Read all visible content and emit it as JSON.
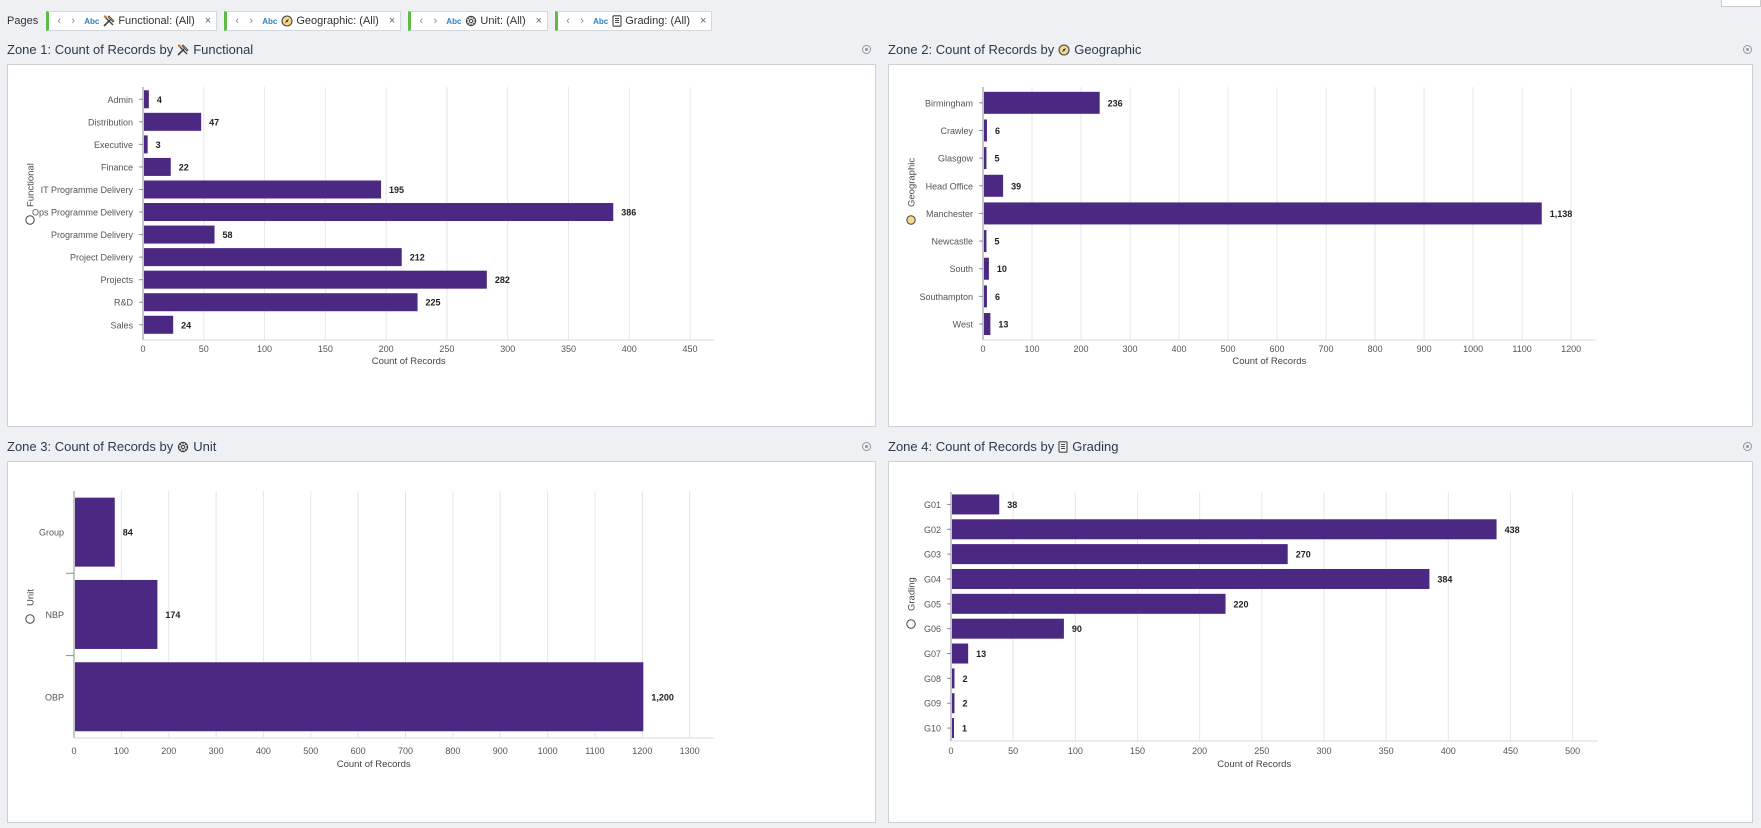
{
  "pages_bar": {
    "label": "Pages",
    "pills": [
      {
        "abc": "Abc",
        "icon": "hammer-icon",
        "label": "Functional: (All)",
        "close": "×"
      },
      {
        "abc": "Abc",
        "icon": "compass-icon",
        "label": "Geographic: (All)",
        "close": "×"
      },
      {
        "abc": "Abc",
        "icon": "gear-icon",
        "label": "Unit: (All)",
        "close": "×"
      },
      {
        "abc": "Abc",
        "icon": "document-icon",
        "label": "Grading: (All)",
        "close": "×"
      }
    ]
  },
  "colors": {
    "bar": "#4b2882",
    "grid": "#e4e6ea",
    "axis": "#8a8f96",
    "tick_text": "#555555"
  },
  "zones": [
    {
      "title_prefix": "Zone 1: Count of Records by",
      "title_suffix": "Functional",
      "icon": "hammer-icon"
    },
    {
      "title_prefix": "Zone 2: Count of Records by",
      "title_suffix": "Geographic",
      "icon": "compass-icon"
    },
    {
      "title_prefix": "Zone 3: Count of Records by",
      "title_suffix": "Unit",
      "icon": "gear-icon"
    },
    {
      "title_prefix": "Zone 4: Count of Records by",
      "title_suffix": "Grading",
      "icon": "document-icon"
    }
  ],
  "chart_data": [
    {
      "type": "bar",
      "orientation": "horizontal",
      "title": "Zone 1: Count of Records by Functional",
      "ylabel": "Functional",
      "xlabel": "Count of Records",
      "categories": [
        "Admin",
        "Distribution",
        "Executive",
        "Finance",
        "IT Programme Delivery",
        "Ops Programme Delivery",
        "Programme Delivery",
        "Project Delivery",
        "Projects",
        "R&D",
        "Sales"
      ],
      "values": [
        4,
        47,
        3,
        22,
        195,
        386,
        58,
        212,
        282,
        225,
        24
      ],
      "value_labels": [
        "4",
        "47",
        "3",
        "22",
        "195",
        "386",
        "58",
        "212",
        "282",
        "225",
        "24"
      ],
      "xlim": [
        0,
        470
      ],
      "xticks": [
        0,
        50,
        100,
        150,
        200,
        250,
        300,
        350,
        400,
        450
      ],
      "xtick_labels": [
        "0",
        "50",
        "100",
        "150",
        "200",
        "250",
        "300",
        "350",
        "400",
        "450"
      ]
    },
    {
      "type": "bar",
      "orientation": "horizontal",
      "title": "Zone 2: Count of Records by Geographic",
      "ylabel": "Geographic",
      "xlabel": "Count of Records",
      "categories": [
        "Birmingham",
        "Crawley",
        "Glasgow",
        "Head Office",
        "Manchester",
        "Newcastle",
        "South",
        "Southampton",
        "West"
      ],
      "values": [
        236,
        6,
        5,
        39,
        1138,
        5,
        10,
        6,
        13
      ],
      "value_labels": [
        "236",
        "6",
        "5",
        "39",
        "1,138",
        "5",
        "10",
        "6",
        "13"
      ],
      "xlim": [
        0,
        1250
      ],
      "xticks": [
        0,
        100,
        200,
        300,
        400,
        500,
        600,
        700,
        800,
        900,
        1000,
        1100,
        1200
      ],
      "xtick_labels": [
        "0",
        "100",
        "200",
        "300",
        "400",
        "500",
        "600",
        "700",
        "800",
        "900",
        "1000",
        "1100",
        "1200"
      ]
    },
    {
      "type": "bar",
      "orientation": "horizontal",
      "title": "Zone 3: Count of Records by Unit",
      "ylabel": "Unit",
      "xlabel": "Count of Records",
      "categories": [
        "Group",
        "NBP",
        "OBP"
      ],
      "values": [
        84,
        174,
        1200
      ],
      "value_labels": [
        "84",
        "174",
        "1,200"
      ],
      "xlim": [
        0,
        1350
      ],
      "xticks": [
        0,
        100,
        200,
        300,
        400,
        500,
        600,
        700,
        800,
        900,
        1000,
        1100,
        1200,
        1300
      ],
      "xtick_labels": [
        "0",
        "100",
        "200",
        "300",
        "400",
        "500",
        "600",
        "700",
        "800",
        "900",
        "1000",
        "1100",
        "1200",
        "1300"
      ]
    },
    {
      "type": "bar",
      "orientation": "horizontal",
      "title": "Zone 4: Count of Records by Grading",
      "ylabel": "Grading",
      "xlabel": "Count of Records",
      "categories": [
        "G01",
        "G02",
        "G03",
        "G04",
        "G05",
        "G06",
        "G07",
        "G08",
        "G09",
        "G10"
      ],
      "values": [
        38,
        438,
        270,
        384,
        220,
        90,
        13,
        2,
        2,
        1
      ],
      "value_labels": [
        "38",
        "438",
        "270",
        "384",
        "220",
        "90",
        "13",
        "2",
        "2",
        "1"
      ],
      "xlim": [
        0,
        520
      ],
      "xticks": [
        0,
        50,
        100,
        150,
        200,
        250,
        300,
        350,
        400,
        450,
        500
      ],
      "xtick_labels": [
        "0",
        "50",
        "100",
        "150",
        "200",
        "250",
        "300",
        "350",
        "400",
        "450",
        "500"
      ]
    }
  ]
}
